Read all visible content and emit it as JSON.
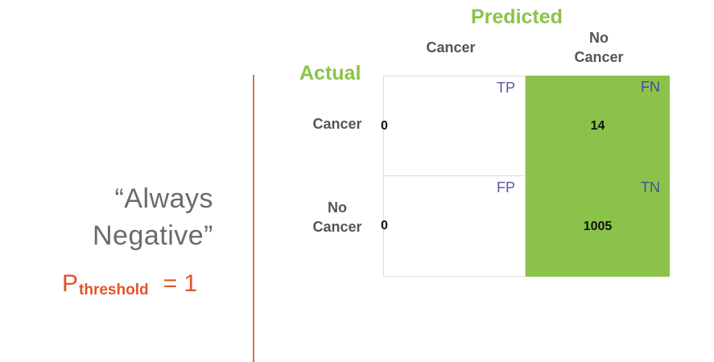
{
  "left_panel": {
    "quote_line1": "“Always",
    "quote_line2": "Negative”",
    "threshold_symbol": "P",
    "threshold_subscript": "threshold",
    "threshold_value": "= 1"
  },
  "matrix": {
    "predicted_title": "Predicted",
    "actual_title": "Actual",
    "col_headers": [
      "Cancer",
      "No\nCancer"
    ],
    "row_headers": [
      "Cancer",
      "No\nCancer"
    ],
    "cells": [
      {
        "tag": "TP",
        "value": "0"
      },
      {
        "tag": "FN",
        "value": "14"
      },
      {
        "tag": "FP",
        "value": "0"
      },
      {
        "tag": "TN",
        "value": "1005"
      }
    ]
  },
  "colors": {
    "accent_green": "#8bc34a",
    "threshold_orange": "#e0542a",
    "divider": "#c9775a",
    "tag_purple": "#5b57a5"
  }
}
